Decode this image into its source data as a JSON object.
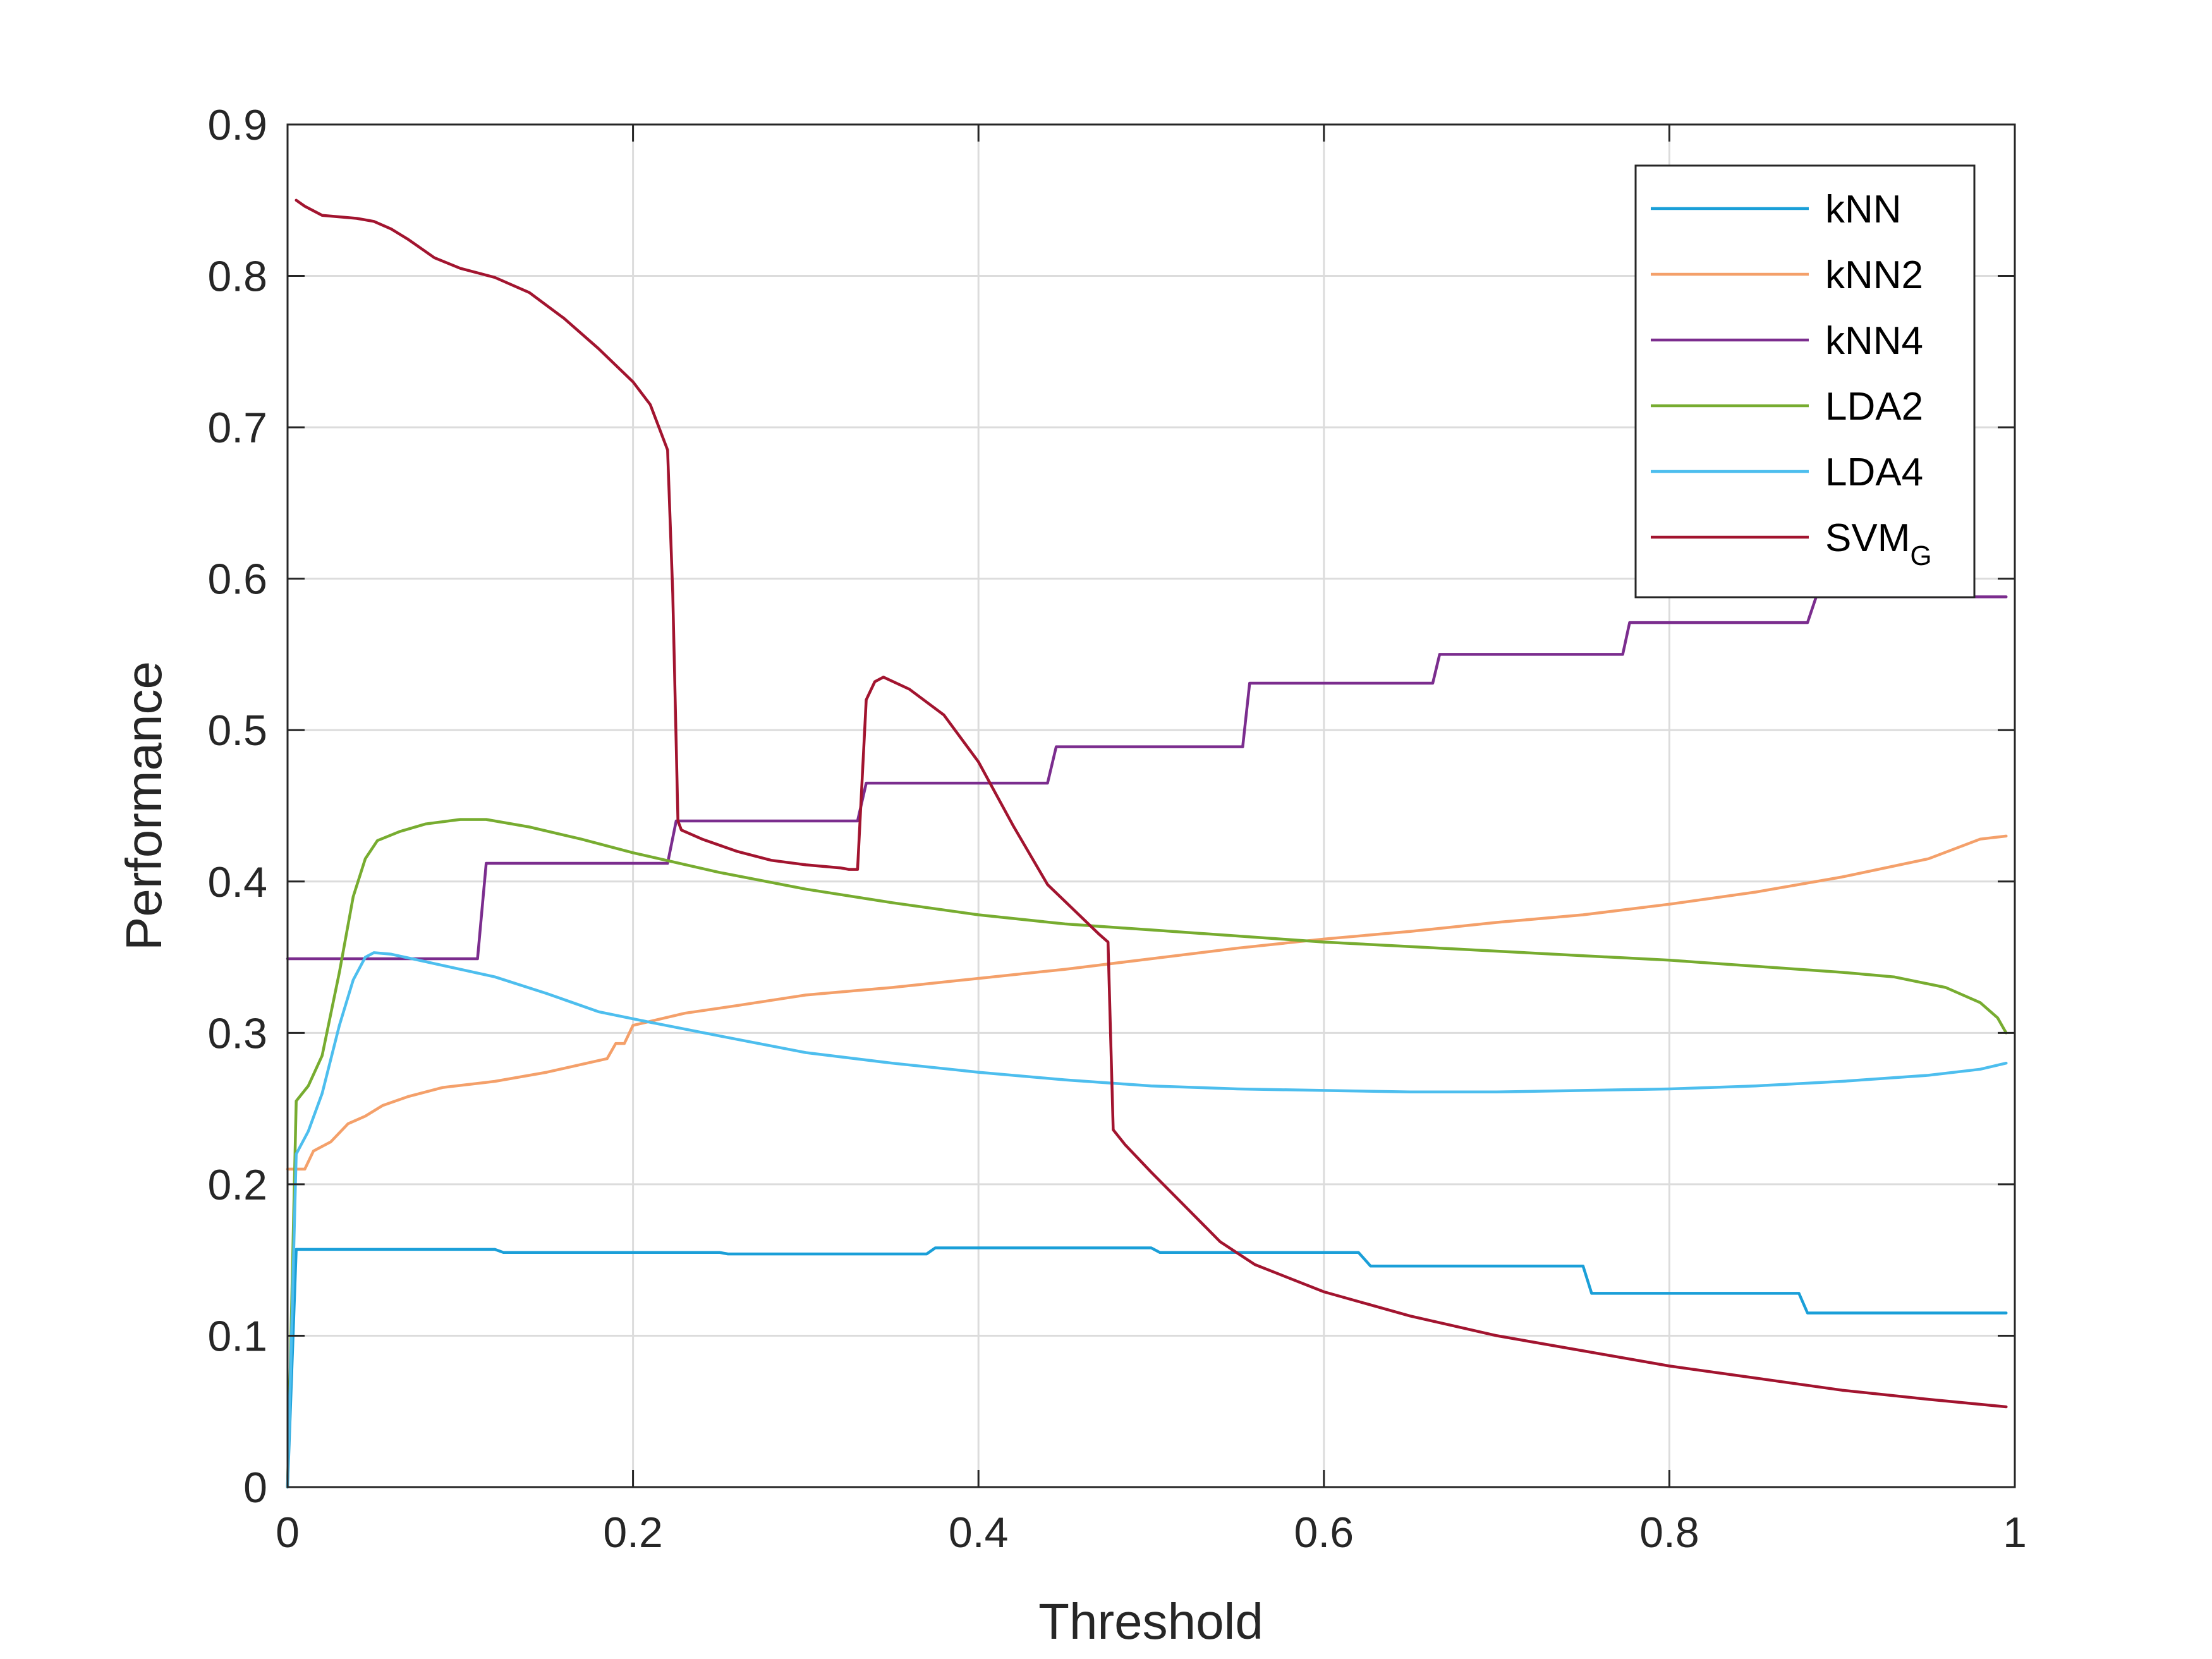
{
  "chart_data": {
    "type": "line",
    "title": "",
    "xlabel": "Threshold",
    "ylabel": "Performance",
    "xlim": [
      0,
      1
    ],
    "ylim": [
      0,
      0.9
    ],
    "xticks": [
      0,
      0.2,
      0.4,
      0.6,
      0.8,
      1
    ],
    "xtick_labels": [
      "0",
      "0.2",
      "0.4",
      "0.6",
      "0.8",
      "1"
    ],
    "yticks": [
      0,
      0.1,
      0.2,
      0.3,
      0.4,
      0.5,
      0.6,
      0.7,
      0.8,
      0.9
    ],
    "ytick_labels": [
      "0",
      "0.1",
      "0.2",
      "0.3",
      "0.4",
      "0.5",
      "0.6",
      "0.7",
      "0.8",
      "0.9"
    ],
    "grid": true,
    "legend_position": "top-right",
    "series": [
      {
        "name": "kNN",
        "color": "#1a9fd8",
        "points": [
          [
            0,
            0
          ],
          [
            0.005,
            0.157
          ],
          [
            0.12,
            0.157
          ],
          [
            0.125,
            0.155
          ],
          [
            0.25,
            0.155
          ],
          [
            0.255,
            0.154
          ],
          [
            0.37,
            0.154
          ],
          [
            0.375,
            0.158
          ],
          [
            0.5,
            0.158
          ],
          [
            0.505,
            0.155
          ],
          [
            0.62,
            0.155
          ],
          [
            0.627,
            0.146
          ],
          [
            0.75,
            0.146
          ],
          [
            0.755,
            0.128
          ],
          [
            0.875,
            0.128
          ],
          [
            0.88,
            0.115
          ],
          [
            0.995,
            0.115
          ]
        ]
      },
      {
        "name": "kNN2",
        "color": "#f4a06a",
        "points": [
          [
            0,
            0.21
          ],
          [
            0.01,
            0.21
          ],
          [
            0.015,
            0.222
          ],
          [
            0.025,
            0.228
          ],
          [
            0.035,
            0.24
          ],
          [
            0.045,
            0.245
          ],
          [
            0.055,
            0.252
          ],
          [
            0.07,
            0.258
          ],
          [
            0.09,
            0.264
          ],
          [
            0.12,
            0.268
          ],
          [
            0.15,
            0.274
          ],
          [
            0.185,
            0.283
          ],
          [
            0.19,
            0.293
          ],
          [
            0.195,
            0.293
          ],
          [
            0.2,
            0.305
          ],
          [
            0.23,
            0.313
          ],
          [
            0.26,
            0.318
          ],
          [
            0.3,
            0.325
          ],
          [
            0.35,
            0.33
          ],
          [
            0.4,
            0.336
          ],
          [
            0.45,
            0.342
          ],
          [
            0.5,
            0.349
          ],
          [
            0.55,
            0.356
          ],
          [
            0.6,
            0.362
          ],
          [
            0.65,
            0.367
          ],
          [
            0.7,
            0.373
          ],
          [
            0.75,
            0.378
          ],
          [
            0.8,
            0.385
          ],
          [
            0.85,
            0.393
          ],
          [
            0.9,
            0.403
          ],
          [
            0.95,
            0.415
          ],
          [
            0.98,
            0.428
          ],
          [
            0.995,
            0.43
          ]
        ]
      },
      {
        "name": "kNN4",
        "color": "#7b2d8e",
        "points": [
          [
            0,
            0.349
          ],
          [
            0.11,
            0.349
          ],
          [
            0.115,
            0.412
          ],
          [
            0.22,
            0.412
          ],
          [
            0.225,
            0.44
          ],
          [
            0.33,
            0.44
          ],
          [
            0.335,
            0.465
          ],
          [
            0.44,
            0.465
          ],
          [
            0.445,
            0.489
          ],
          [
            0.553,
            0.489
          ],
          [
            0.557,
            0.531
          ],
          [
            0.663,
            0.531
          ],
          [
            0.667,
            0.55
          ],
          [
            0.773,
            0.55
          ],
          [
            0.777,
            0.571
          ],
          [
            0.88,
            0.571
          ],
          [
            0.885,
            0.588
          ],
          [
            0.995,
            0.588
          ]
        ]
      },
      {
        "name": "LDA2",
        "color": "#77ac30",
        "points": [
          [
            0,
            0
          ],
          [
            0.005,
            0.255
          ],
          [
            0.012,
            0.265
          ],
          [
            0.02,
            0.285
          ],
          [
            0.03,
            0.34
          ],
          [
            0.038,
            0.39
          ],
          [
            0.045,
            0.415
          ],
          [
            0.052,
            0.427
          ],
          [
            0.065,
            0.433
          ],
          [
            0.08,
            0.438
          ],
          [
            0.1,
            0.441
          ],
          [
            0.115,
            0.441
          ],
          [
            0.14,
            0.436
          ],
          [
            0.17,
            0.428
          ],
          [
            0.2,
            0.419
          ],
          [
            0.25,
            0.406
          ],
          [
            0.3,
            0.395
          ],
          [
            0.35,
            0.386
          ],
          [
            0.4,
            0.378
          ],
          [
            0.45,
            0.372
          ],
          [
            0.5,
            0.368
          ],
          [
            0.55,
            0.364
          ],
          [
            0.6,
            0.36
          ],
          [
            0.65,
            0.357
          ],
          [
            0.7,
            0.354
          ],
          [
            0.75,
            0.351
          ],
          [
            0.8,
            0.348
          ],
          [
            0.85,
            0.344
          ],
          [
            0.9,
            0.34
          ],
          [
            0.93,
            0.337
          ],
          [
            0.96,
            0.33
          ],
          [
            0.98,
            0.32
          ],
          [
            0.99,
            0.31
          ],
          [
            0.995,
            0.3
          ]
        ]
      },
      {
        "name": "LDA4",
        "color": "#4dbeee",
        "points": [
          [
            0,
            0
          ],
          [
            0.005,
            0.22
          ],
          [
            0.012,
            0.235
          ],
          [
            0.02,
            0.26
          ],
          [
            0.03,
            0.305
          ],
          [
            0.038,
            0.335
          ],
          [
            0.045,
            0.35
          ],
          [
            0.05,
            0.353
          ],
          [
            0.06,
            0.352
          ],
          [
            0.08,
            0.347
          ],
          [
            0.1,
            0.342
          ],
          [
            0.12,
            0.337
          ],
          [
            0.15,
            0.326
          ],
          [
            0.18,
            0.314
          ],
          [
            0.21,
            0.307
          ],
          [
            0.25,
            0.298
          ],
          [
            0.3,
            0.287
          ],
          [
            0.35,
            0.28
          ],
          [
            0.4,
            0.274
          ],
          [
            0.45,
            0.269
          ],
          [
            0.5,
            0.265
          ],
          [
            0.55,
            0.263
          ],
          [
            0.6,
            0.262
          ],
          [
            0.65,
            0.261
          ],
          [
            0.7,
            0.261
          ],
          [
            0.75,
            0.262
          ],
          [
            0.8,
            0.263
          ],
          [
            0.85,
            0.265
          ],
          [
            0.9,
            0.268
          ],
          [
            0.95,
            0.272
          ],
          [
            0.98,
            0.276
          ],
          [
            0.995,
            0.28
          ]
        ]
      },
      {
        "name": "SVM",
        "name_subscript": "G",
        "color": "#a2142f",
        "points": [
          [
            0.005,
            0.85
          ],
          [
            0.01,
            0.846
          ],
          [
            0.02,
            0.84
          ],
          [
            0.03,
            0.839
          ],
          [
            0.04,
            0.838
          ],
          [
            0.05,
            0.836
          ],
          [
            0.06,
            0.831
          ],
          [
            0.07,
            0.824
          ],
          [
            0.08,
            0.816
          ],
          [
            0.085,
            0.812
          ],
          [
            0.1,
            0.805
          ],
          [
            0.12,
            0.799
          ],
          [
            0.14,
            0.789
          ],
          [
            0.16,
            0.772
          ],
          [
            0.18,
            0.752
          ],
          [
            0.2,
            0.73
          ],
          [
            0.21,
            0.715
          ],
          [
            0.215,
            0.7
          ],
          [
            0.22,
            0.685
          ],
          [
            0.223,
            0.59
          ],
          [
            0.226,
            0.44
          ],
          [
            0.228,
            0.434
          ],
          [
            0.24,
            0.428
          ],
          [
            0.26,
            0.42
          ],
          [
            0.28,
            0.414
          ],
          [
            0.3,
            0.411
          ],
          [
            0.32,
            0.409
          ],
          [
            0.325,
            0.408
          ],
          [
            0.33,
            0.408
          ],
          [
            0.335,
            0.52
          ],
          [
            0.34,
            0.532
          ],
          [
            0.345,
            0.535
          ],
          [
            0.36,
            0.527
          ],
          [
            0.38,
            0.51
          ],
          [
            0.4,
            0.479
          ],
          [
            0.42,
            0.437
          ],
          [
            0.44,
            0.398
          ],
          [
            0.46,
            0.376
          ],
          [
            0.47,
            0.365
          ],
          [
            0.475,
            0.36
          ],
          [
            0.478,
            0.236
          ],
          [
            0.485,
            0.226
          ],
          [
            0.5,
            0.208
          ],
          [
            0.52,
            0.185
          ],
          [
            0.54,
            0.162
          ],
          [
            0.56,
            0.147
          ],
          [
            0.6,
            0.129
          ],
          [
            0.65,
            0.113
          ],
          [
            0.7,
            0.1
          ],
          [
            0.75,
            0.09
          ],
          [
            0.8,
            0.08
          ],
          [
            0.85,
            0.072
          ],
          [
            0.9,
            0.064
          ],
          [
            0.95,
            0.058
          ],
          [
            0.995,
            0.053
          ]
        ]
      }
    ]
  }
}
